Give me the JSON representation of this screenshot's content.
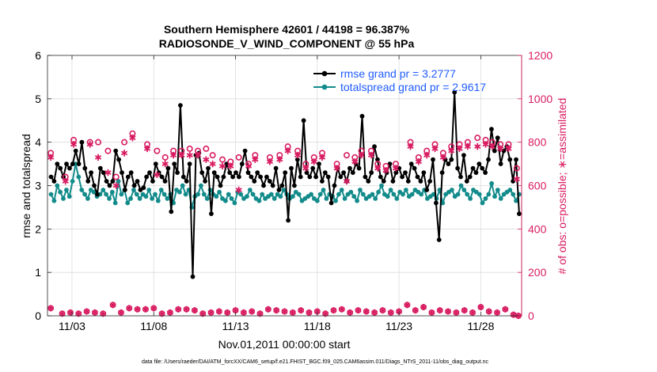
{
  "chart_data": {
    "type": "line",
    "title_line1": "Southern Hemisphere 42601 / 44198 = 96.387%",
    "title_line2": "RADIOSONDE_V_WIND_COMPONENT @ 55 hPa",
    "xlabel": "Nov.01,2011 00:00:00 start",
    "ylabel_left": "rmse and totalspread",
    "ylabel_right": "# of obs: o=possible; ∗=assimilated",
    "footnote": "data file: /Users/raeder/DAI/ATM_forcXX/CAM6_setup/f.e21.FHIST_BGC.f09_025.CAM6assim.011/Diags_NTrS_2011-11/obs_diag_output.nc",
    "xlim": [
      1.5,
      30.5
    ],
    "ylim_left": [
      0,
      6
    ],
    "ylim_right": [
      0,
      1200
    ],
    "yticks_left": [
      "0",
      "1",
      "2",
      "3",
      "4",
      "5",
      "6"
    ],
    "yticks_right": [
      "0",
      "200",
      "400",
      "600",
      "800",
      "1000",
      "1200"
    ],
    "x_tick_values": [
      3,
      8,
      13,
      18,
      23,
      28
    ],
    "x_tick_labels": [
      "11/03",
      "11/08",
      "11/13",
      "11/18",
      "11/23",
      "11/28"
    ],
    "colors": {
      "rmse": "#000000",
      "spread": "#138b8b",
      "obs": "#d81b60"
    },
    "series": [
      {
        "name": "rmse",
        "legend": "rmse grand pr = 3.2777",
        "values": [
          3.2,
          3.1,
          3.5,
          3.4,
          3.2,
          3.5,
          3.4,
          3.5,
          3.8,
          3.5,
          4.0,
          3.4,
          3.1,
          3.3,
          3.0,
          2.8,
          3.4,
          3.3,
          3.1,
          3.0,
          3.1,
          3.8,
          3.6,
          3.3,
          2.9,
          3.2,
          3.3,
          3.0,
          3.1,
          2.9,
          2.95,
          3.2,
          3.3,
          3.1,
          3.5,
          3.3,
          3.2,
          3.1,
          3.4,
          2.4,
          3.5,
          3.3,
          4.85,
          3.2,
          3.1,
          3.5,
          0.9,
          3.7,
          3.75,
          3.3,
          3.1,
          3.4,
          2.35,
          3.3,
          3.2,
          3.0,
          3.2,
          3.5,
          3.3,
          3.2,
          3.3,
          3.2,
          3.5,
          3.8,
          3.3,
          3.2,
          3.1,
          3.3,
          3.2,
          3.0,
          3.2,
          3.1,
          3.0,
          3.4,
          2.9,
          3.0,
          3.3,
          2.2,
          3.4,
          3.0,
          3.6,
          3.2,
          4.5,
          3.3,
          3.2,
          3.4,
          3.2,
          3.5,
          3.1,
          3.3,
          3.2,
          2.6,
          3.0,
          3.4,
          3.2,
          3.3,
          3.1,
          3.4,
          3.3,
          3.5,
          3.4,
          4.6,
          3.2,
          3.1,
          3.3,
          3.9,
          3.6,
          3.2,
          3.1,
          3.3,
          3.5,
          3.1,
          3.3,
          3.4,
          3.2,
          3.3,
          3.1,
          3.5,
          3.4,
          3.2,
          3.1,
          3.3,
          2.9,
          3.1,
          3.6,
          2.6,
          1.75,
          3.3,
          3.6,
          3.5,
          3.6,
          5.15,
          3.4,
          3.2,
          3.7,
          3.1,
          3.2,
          3.4,
          3.3,
          3.5,
          3.4,
          3.3,
          3.6,
          4.3,
          3.8,
          4.1,
          3.5,
          3.8,
          3.9,
          3.6,
          3.1,
          3.6,
          2.35
        ]
      },
      {
        "name": "totalspread",
        "legend": "totalspread grand pr = 2.9617",
        "values": [
          2.8,
          2.65,
          3.0,
          2.85,
          2.7,
          2.9,
          2.75,
          3.1,
          3.5,
          3.2,
          2.9,
          2.8,
          2.7,
          2.9,
          2.85,
          2.75,
          2.8,
          2.9,
          2.8,
          2.7,
          2.85,
          2.6,
          3.1,
          2.8,
          2.9,
          2.6,
          2.7,
          2.9,
          2.8,
          2.7,
          2.8,
          2.75,
          2.9,
          2.7,
          2.8,
          2.65,
          2.9,
          2.8,
          2.7,
          2.8,
          2.6,
          2.9,
          2.85,
          3.0,
          2.8,
          2.9,
          2.5,
          2.75,
          2.8,
          3.0,
          2.8,
          2.7,
          2.9,
          2.8,
          2.75,
          2.85,
          2.7,
          2.65,
          2.8,
          2.7,
          2.6,
          2.85,
          2.8,
          2.7,
          2.75,
          2.9,
          2.8,
          2.7,
          2.65,
          2.8,
          2.7,
          2.75,
          2.8,
          2.7,
          2.8,
          2.75,
          2.9,
          2.8,
          2.7,
          2.75,
          2.85,
          2.8,
          2.65,
          2.7,
          2.75,
          2.8,
          2.7,
          2.65,
          2.8,
          2.9,
          2.7,
          2.8,
          2.75,
          2.65,
          2.8,
          2.9,
          2.7,
          2.8,
          2.85,
          2.75,
          2.65,
          2.9,
          2.8,
          2.7,
          2.75,
          2.8,
          2.7,
          2.85,
          3.0,
          2.8,
          2.75,
          2.9,
          2.8,
          2.7,
          2.85,
          2.8,
          2.9,
          2.75,
          2.8,
          2.9,
          2.85,
          2.8,
          2.9,
          2.7,
          2.75,
          2.8,
          2.7,
          2.9,
          2.6,
          2.8,
          2.85,
          2.9,
          2.75,
          2.8,
          3.0,
          2.9,
          2.8,
          2.7,
          2.9,
          2.85,
          2.8,
          2.6,
          2.7,
          2.8,
          3.05,
          2.75,
          2.9,
          2.7,
          2.8,
          2.85,
          2.9,
          2.8,
          2.65,
          2.8
        ]
      }
    ],
    "obs_possible": [
      {
        "x": 1.7,
        "n": 750
      },
      {
        "x": 2.6,
        "n": 640
      },
      {
        "x": 3.1,
        "n": 810
      },
      {
        "x": 4.1,
        "n": 800
      },
      {
        "x": 4.6,
        "n": 800
      },
      {
        "x": 5.2,
        "n": 760
      },
      {
        "x": 5.7,
        "n": 640
      },
      {
        "x": 6.2,
        "n": 800
      },
      {
        "x": 6.7,
        "n": 840
      },
      {
        "x": 7.6,
        "n": 790
      },
      {
        "x": 8.2,
        "n": 760
      },
      {
        "x": 8.7,
        "n": 730
      },
      {
        "x": 9.2,
        "n": 760
      },
      {
        "x": 9.7,
        "n": 760
      },
      {
        "x": 10.2,
        "n": 770
      },
      {
        "x": 10.7,
        "n": 760
      },
      {
        "x": 11.2,
        "n": 770
      },
      {
        "x": 11.6,
        "n": 740
      },
      {
        "x": 12.2,
        "n": 720
      },
      {
        "x": 12.7,
        "n": 710
      },
      {
        "x": 13.2,
        "n": 730
      },
      {
        "x": 13.8,
        "n": 700
      },
      {
        "x": 14.2,
        "n": 740
      },
      {
        "x": 15.1,
        "n": 730
      },
      {
        "x": 15.7,
        "n": 740
      },
      {
        "x": 16.2,
        "n": 780
      },
      {
        "x": 16.8,
        "n": 760
      },
      {
        "x": 17.3,
        "n": 700
      },
      {
        "x": 17.8,
        "n": 730
      },
      {
        "x": 18.3,
        "n": 750
      },
      {
        "x": 19.2,
        "n": 700
      },
      {
        "x": 19.8,
        "n": 740
      },
      {
        "x": 20.3,
        "n": 730
      },
      {
        "x": 20.7,
        "n": 760
      },
      {
        "x": 21.3,
        "n": 760
      },
      {
        "x": 21.7,
        "n": 700
      },
      {
        "x": 22.2,
        "n": 690
      },
      {
        "x": 22.8,
        "n": 700
      },
      {
        "x": 23.7,
        "n": 800
      },
      {
        "x": 24.2,
        "n": 730
      },
      {
        "x": 24.7,
        "n": 760
      },
      {
        "x": 25.2,
        "n": 790
      },
      {
        "x": 25.7,
        "n": 750
      },
      {
        "x": 26.2,
        "n": 780
      },
      {
        "x": 26.7,
        "n": 790
      },
      {
        "x": 27.2,
        "n": 800
      },
      {
        "x": 27.8,
        "n": 820
      },
      {
        "x": 28.3,
        "n": 810
      },
      {
        "x": 28.7,
        "n": 800
      },
      {
        "x": 29.2,
        "n": 790
      },
      {
        "x": 29.7,
        "n": 790
      },
      {
        "x": 30.2,
        "n": 680
      }
    ],
    "obs_assimilated": [
      {
        "x": 1.7,
        "n": 730
      },
      {
        "x": 2.6,
        "n": 620
      },
      {
        "x": 3.1,
        "n": 790
      },
      {
        "x": 4.1,
        "n": 790
      },
      {
        "x": 4.6,
        "n": 730
      },
      {
        "x": 5.2,
        "n": 660
      },
      {
        "x": 5.7,
        "n": 600
      },
      {
        "x": 6.2,
        "n": 750
      },
      {
        "x": 6.7,
        "n": 820
      },
      {
        "x": 7.6,
        "n": 770
      },
      {
        "x": 8.2,
        "n": 650
      },
      {
        "x": 8.7,
        "n": 700
      },
      {
        "x": 9.2,
        "n": 740
      },
      {
        "x": 9.7,
        "n": 740
      },
      {
        "x": 10.2,
        "n": 740
      },
      {
        "x": 10.7,
        "n": 740
      },
      {
        "x": 11.2,
        "n": 720
      },
      {
        "x": 11.6,
        "n": 700
      },
      {
        "x": 12.2,
        "n": 690
      },
      {
        "x": 12.7,
        "n": 690
      },
      {
        "x": 13.2,
        "n": 580
      },
      {
        "x": 13.8,
        "n": 690
      },
      {
        "x": 14.2,
        "n": 720
      },
      {
        "x": 15.1,
        "n": 710
      },
      {
        "x": 15.7,
        "n": 720
      },
      {
        "x": 16.2,
        "n": 760
      },
      {
        "x": 16.8,
        "n": 740
      },
      {
        "x": 17.3,
        "n": 680
      },
      {
        "x": 17.8,
        "n": 710
      },
      {
        "x": 18.3,
        "n": 730
      },
      {
        "x": 19.2,
        "n": 680
      },
      {
        "x": 19.8,
        "n": 620
      },
      {
        "x": 20.3,
        "n": 710
      },
      {
        "x": 20.7,
        "n": 740
      },
      {
        "x": 21.3,
        "n": 740
      },
      {
        "x": 21.7,
        "n": 680
      },
      {
        "x": 22.2,
        "n": 670
      },
      {
        "x": 22.8,
        "n": 680
      },
      {
        "x": 23.7,
        "n": 780
      },
      {
        "x": 24.2,
        "n": 710
      },
      {
        "x": 24.7,
        "n": 740
      },
      {
        "x": 25.2,
        "n": 770
      },
      {
        "x": 25.7,
        "n": 730
      },
      {
        "x": 26.2,
        "n": 760
      },
      {
        "x": 26.7,
        "n": 770
      },
      {
        "x": 27.2,
        "n": 780
      },
      {
        "x": 27.8,
        "n": 780
      },
      {
        "x": 28.3,
        "n": 790
      },
      {
        "x": 28.7,
        "n": 780
      },
      {
        "x": 29.2,
        "n": 770
      },
      {
        "x": 29.7,
        "n": 770
      },
      {
        "x": 30.2,
        "n": 630
      }
    ],
    "obs_low": [
      {
        "x": 1.7,
        "n": 35
      },
      {
        "x": 2.4,
        "n": 10
      },
      {
        "x": 2.9,
        "n": 15
      },
      {
        "x": 3.4,
        "n": 10
      },
      {
        "x": 3.9,
        "n": 20
      },
      {
        "x": 4.4,
        "n": 15
      },
      {
        "x": 4.9,
        "n": 10
      },
      {
        "x": 5.5,
        "n": 50
      },
      {
        "x": 6.0,
        "n": 15
      },
      {
        "x": 6.5,
        "n": 35
      },
      {
        "x": 7.0,
        "n": 30
      },
      {
        "x": 7.5,
        "n": 30
      },
      {
        "x": 8.0,
        "n": 35
      },
      {
        "x": 8.5,
        "n": 10
      },
      {
        "x": 9.0,
        "n": 15
      },
      {
        "x": 9.5,
        "n": 30
      },
      {
        "x": 10.0,
        "n": 30
      },
      {
        "x": 10.5,
        "n": 25
      },
      {
        "x": 11.0,
        "n": 10
      },
      {
        "x": 11.5,
        "n": 15
      },
      {
        "x": 12.0,
        "n": 20
      },
      {
        "x": 12.5,
        "n": 15
      },
      {
        "x": 13.0,
        "n": 25
      },
      {
        "x": 13.5,
        "n": 15
      },
      {
        "x": 14.0,
        "n": 20
      },
      {
        "x": 14.5,
        "n": 10
      },
      {
        "x": 15.0,
        "n": 30
      },
      {
        "x": 15.5,
        "n": 25
      },
      {
        "x": 16.0,
        "n": 20
      },
      {
        "x": 16.5,
        "n": 15
      },
      {
        "x": 17.0,
        "n": 25
      },
      {
        "x": 17.5,
        "n": 15
      },
      {
        "x": 18.0,
        "n": 20
      },
      {
        "x": 18.5,
        "n": 10
      },
      {
        "x": 19.0,
        "n": 25
      },
      {
        "x": 19.5,
        "n": 30
      },
      {
        "x": 20.0,
        "n": 15
      },
      {
        "x": 20.5,
        "n": 25
      },
      {
        "x": 21.0,
        "n": 20
      },
      {
        "x": 21.5,
        "n": 15
      },
      {
        "x": 22.0,
        "n": 25
      },
      {
        "x": 22.5,
        "n": 15
      },
      {
        "x": 23.0,
        "n": 20
      },
      {
        "x": 23.5,
        "n": 50
      },
      {
        "x": 24.0,
        "n": 25
      },
      {
        "x": 24.5,
        "n": 40
      },
      {
        "x": 25.0,
        "n": 15
      },
      {
        "x": 25.5,
        "n": 25
      },
      {
        "x": 26.0,
        "n": 20
      },
      {
        "x": 26.5,
        "n": 15
      },
      {
        "x": 27.0,
        "n": 25
      },
      {
        "x": 27.5,
        "n": 15
      },
      {
        "x": 28.0,
        "n": 40
      },
      {
        "x": 28.5,
        "n": 20
      },
      {
        "x": 29.0,
        "n": 15
      },
      {
        "x": 29.5,
        "n": 30
      },
      {
        "x": 30.0,
        "n": 5
      },
      {
        "x": 30.3,
        "n": 0
      }
    ]
  }
}
